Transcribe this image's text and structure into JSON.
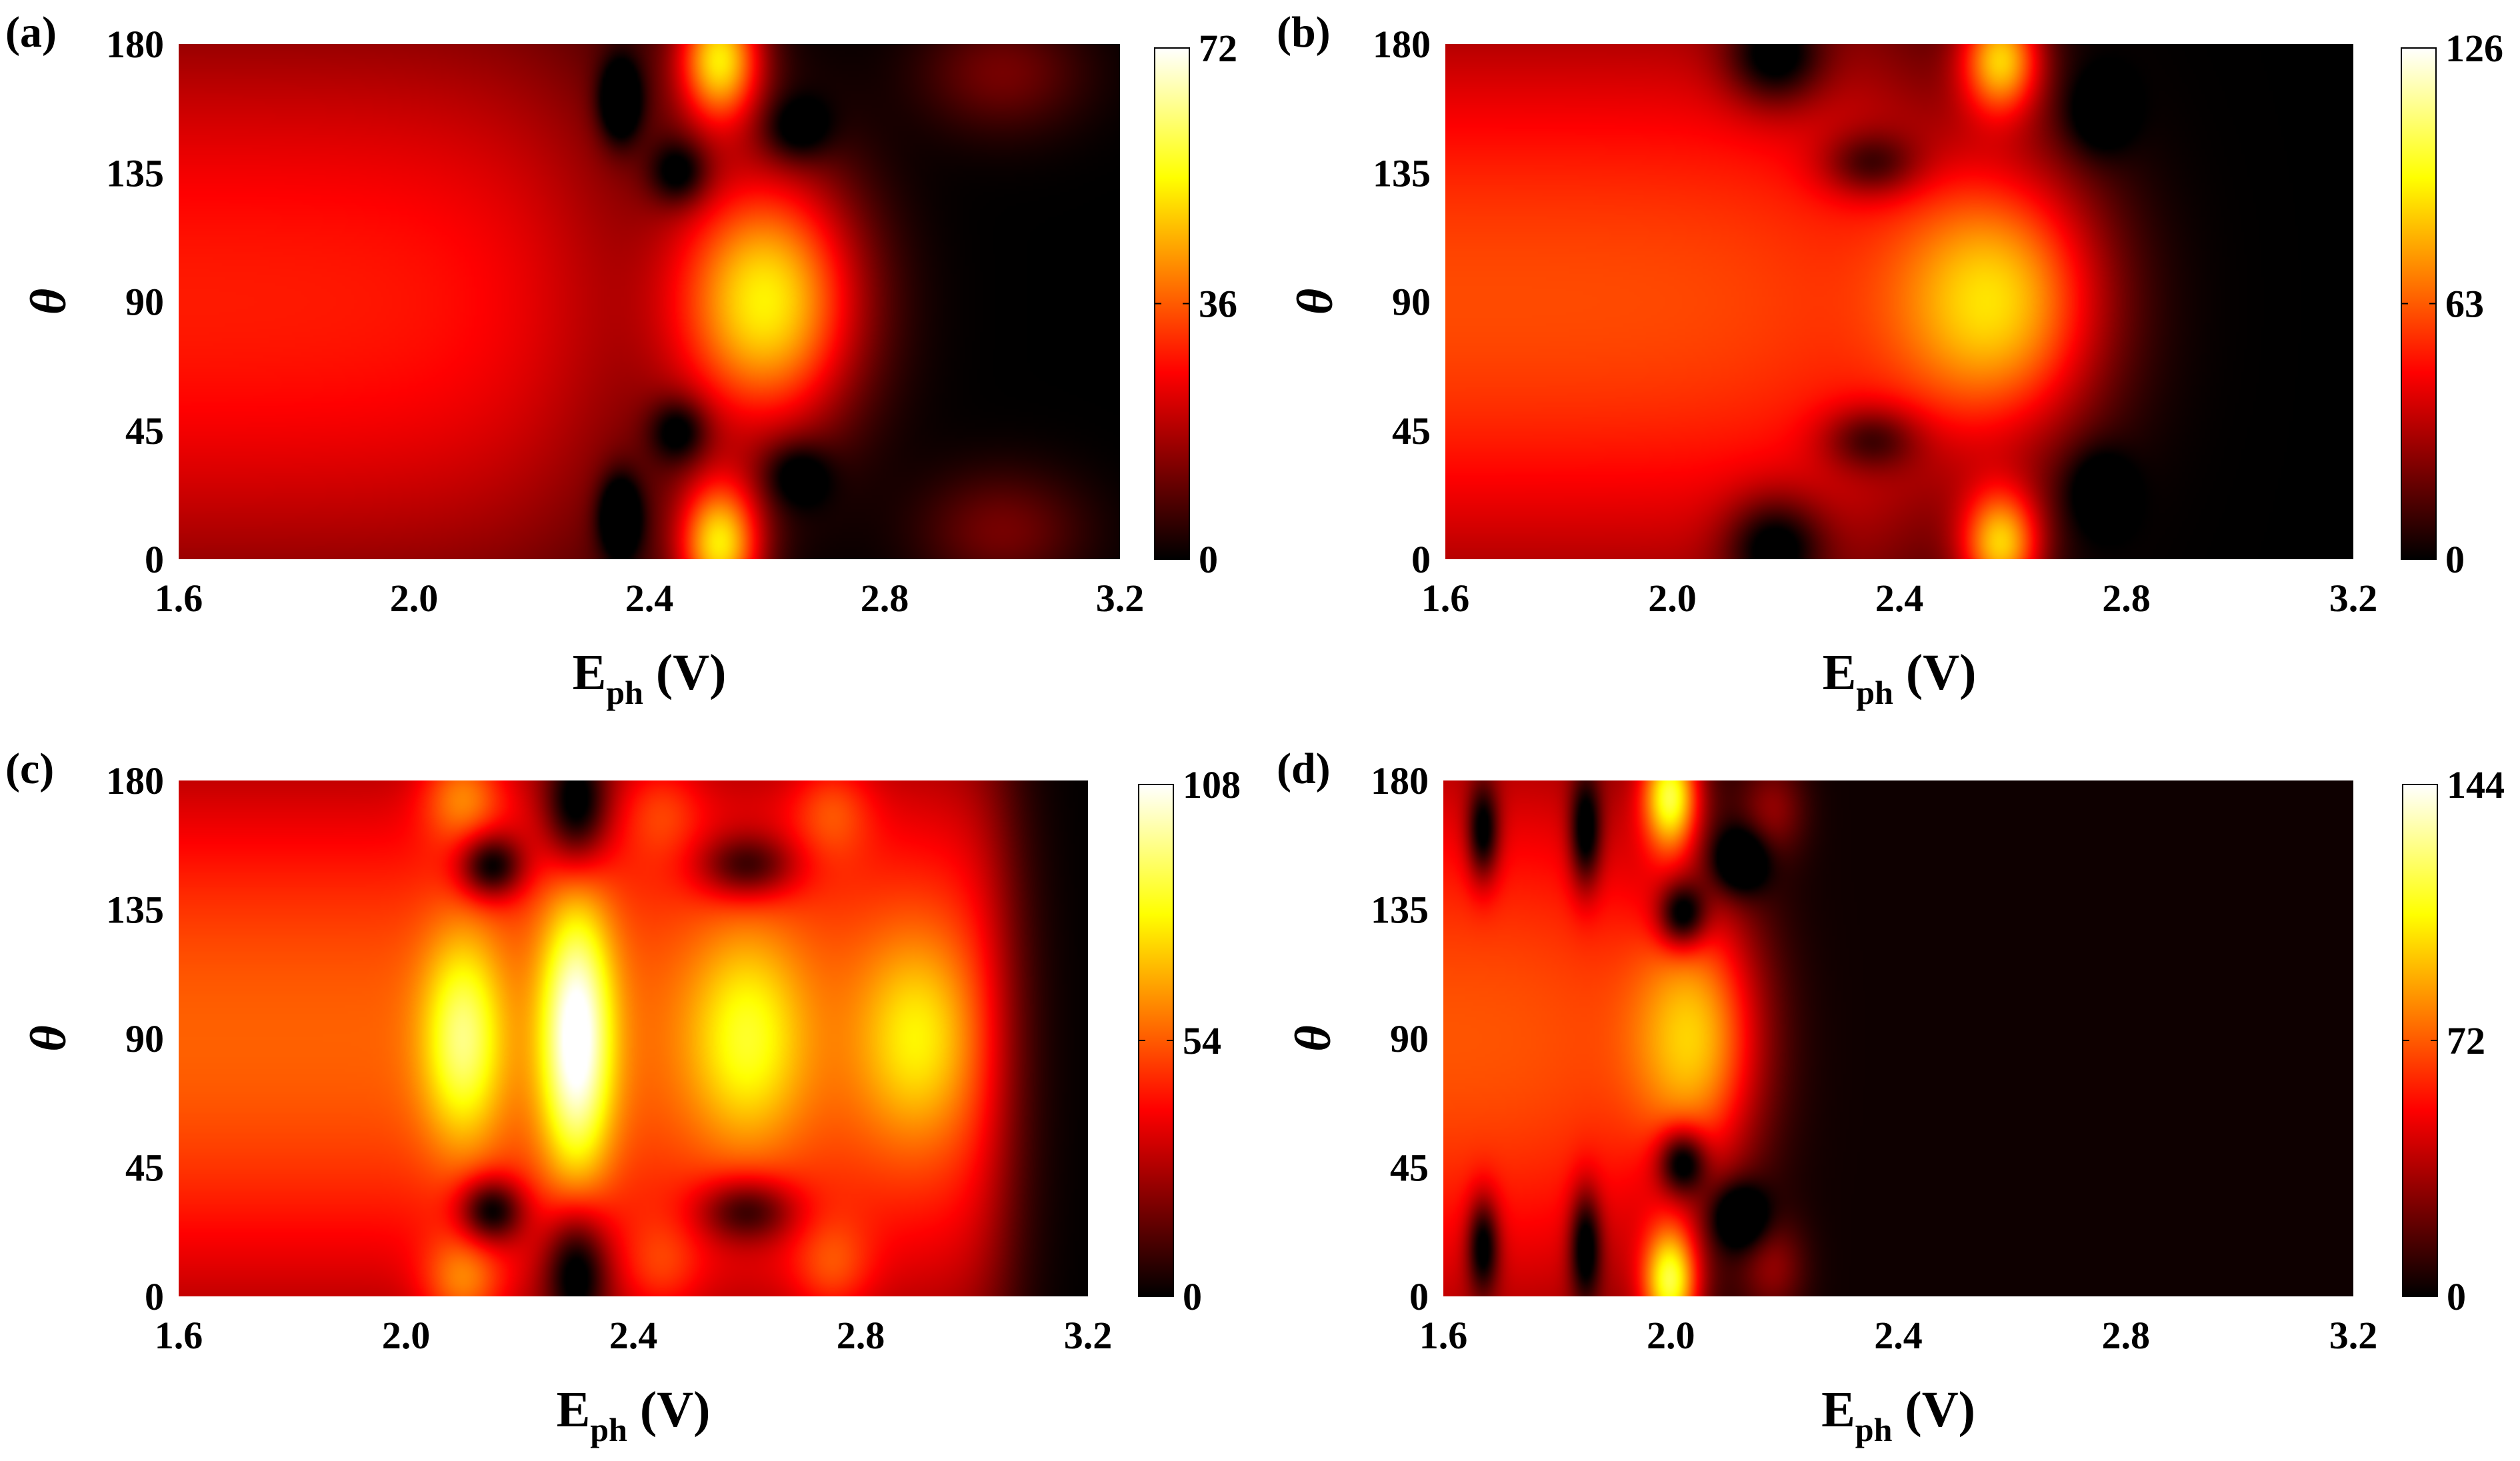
{
  "figure": {
    "colormap": "hot"
  },
  "chart_data": [
    {
      "panel": "(a)",
      "type": "heatmap",
      "xlabel_main": "E",
      "xlabel_sub": "ph",
      "xlabel_unit": " (V)",
      "ylabel": "θ",
      "xlim": [
        1.6,
        3.2
      ],
      "ylim": [
        0,
        180
      ],
      "xticks": [
        "1.6",
        "2.0",
        "2.4",
        "2.8",
        "3.2"
      ],
      "yticks": [
        "0",
        "45",
        "90",
        "135",
        "180"
      ],
      "colorbar": {
        "min": 0,
        "max": 72,
        "ticks": [
          "0",
          "36",
          "72"
        ]
      },
      "base": {
        "value": 29,
        "decay_start": 2.35,
        "decay_width": 0.3
      },
      "blobs": [
        {
          "x": 2.6,
          "y": 90,
          "sx": 0.11,
          "sy": 32,
          "amp": 50
        },
        {
          "x": 2.52,
          "y": 175,
          "sx": 0.05,
          "sy": 16,
          "amp": 48
        },
        {
          "x": 2.52,
          "y": 5,
          "sx": 0.05,
          "sy": 16,
          "amp": 48
        },
        {
          "x": 2.35,
          "y": 160,
          "sx": 0.025,
          "sy": 10,
          "amp": -26
        },
        {
          "x": 2.35,
          "y": 15,
          "sx": 0.025,
          "sy": 10,
          "amp": -26
        },
        {
          "x": 2.45,
          "y": 135,
          "sx": 0.035,
          "sy": 8,
          "amp": -18
        },
        {
          "x": 2.45,
          "y": 45,
          "sx": 0.035,
          "sy": 8,
          "amp": -18
        },
        {
          "x": 2.65,
          "y": 150,
          "sx": 0.04,
          "sy": 8,
          "amp": -14
        },
        {
          "x": 2.65,
          "y": 30,
          "sx": 0.04,
          "sy": 8,
          "amp": -14
        },
        {
          "x": 3.0,
          "y": 170,
          "sx": 0.1,
          "sy": 15,
          "amp": 12
        },
        {
          "x": 3.0,
          "y": 10,
          "sx": 0.1,
          "sy": 15,
          "amp": 12
        }
      ]
    },
    {
      "panel": "(b)",
      "type": "heatmap",
      "xlabel_main": "E",
      "xlabel_sub": "ph",
      "xlabel_unit": " (V)",
      "ylabel": "θ",
      "xlim": [
        1.6,
        3.2
      ],
      "ylim": [
        0,
        180
      ],
      "xticks": [
        "1.6",
        "2.0",
        "2.4",
        "2.8",
        "3.2"
      ],
      "yticks": [
        "0",
        "45",
        "90",
        "135",
        "180"
      ],
      "colorbar": {
        "min": 0,
        "max": 126,
        "ticks": [
          "0",
          "63",
          "126"
        ]
      },
      "base": {
        "value": 60,
        "decay_start": 2.45,
        "decay_width": 0.28
      },
      "blobs": [
        {
          "x": 2.58,
          "y": 90,
          "sx": 0.13,
          "sy": 34,
          "amp": 75
        },
        {
          "x": 2.58,
          "y": 175,
          "sx": 0.05,
          "sy": 14,
          "amp": 75
        },
        {
          "x": 2.58,
          "y": 5,
          "sx": 0.05,
          "sy": 14,
          "amp": 75
        },
        {
          "x": 2.18,
          "y": 175,
          "sx": 0.06,
          "sy": 12,
          "amp": -40
        },
        {
          "x": 2.18,
          "y": 5,
          "sx": 0.06,
          "sy": 12,
          "amp": -40
        },
        {
          "x": 2.35,
          "y": 138,
          "sx": 0.06,
          "sy": 8,
          "amp": -32
        },
        {
          "x": 2.35,
          "y": 42,
          "sx": 0.06,
          "sy": 8,
          "amp": -32
        },
        {
          "x": 2.75,
          "y": 155,
          "sx": 0.04,
          "sy": 10,
          "amp": -20
        },
        {
          "x": 2.75,
          "y": 25,
          "sx": 0.04,
          "sy": 10,
          "amp": -20
        }
      ]
    },
    {
      "panel": "(c)",
      "type": "heatmap",
      "xlabel_main": "E",
      "xlabel_sub": "ph",
      "xlabel_unit": " (V)",
      "ylabel": "θ",
      "xlim": [
        1.6,
        3.2
      ],
      "ylim": [
        0,
        180
      ],
      "xticks": [
        "1.6",
        "2.0",
        "2.4",
        "2.8",
        "3.2"
      ],
      "yticks": [
        "0",
        "45",
        "90",
        "135",
        "180"
      ],
      "colorbar": {
        "min": 0,
        "max": 108,
        "ticks": [
          "0",
          "54",
          "108"
        ]
      },
      "base": {
        "value": 55,
        "decay_start": 3.05,
        "decay_width": 0.1
      },
      "blobs": [
        {
          "x": 2.1,
          "y": 90,
          "sx": 0.05,
          "sy": 26,
          "amp": 40
        },
        {
          "x": 2.3,
          "y": 90,
          "sx": 0.045,
          "sy": 35,
          "amp": 60
        },
        {
          "x": 2.6,
          "y": 90,
          "sx": 0.07,
          "sy": 26,
          "amp": 30
        },
        {
          "x": 2.9,
          "y": 90,
          "sx": 0.07,
          "sy": 24,
          "amp": 25
        },
        {
          "x": 2.1,
          "y": 175,
          "sx": 0.05,
          "sy": 12,
          "amp": 28
        },
        {
          "x": 2.1,
          "y": 5,
          "sx": 0.05,
          "sy": 12,
          "amp": 28
        },
        {
          "x": 2.15,
          "y": 150,
          "sx": 0.04,
          "sy": 8,
          "amp": -45
        },
        {
          "x": 2.15,
          "y": 30,
          "sx": 0.04,
          "sy": 8,
          "amp": -45
        },
        {
          "x": 2.3,
          "y": 170,
          "sx": 0.04,
          "sy": 15,
          "amp": -42
        },
        {
          "x": 2.3,
          "y": 10,
          "sx": 0.04,
          "sy": 15,
          "amp": -42
        },
        {
          "x": 2.6,
          "y": 150,
          "sx": 0.06,
          "sy": 8,
          "amp": -35
        },
        {
          "x": 2.6,
          "y": 30,
          "sx": 0.06,
          "sy": 8,
          "amp": -35
        },
        {
          "x": 2.45,
          "y": 170,
          "sx": 0.05,
          "sy": 12,
          "amp": 15
        },
        {
          "x": 2.45,
          "y": 10,
          "sx": 0.05,
          "sy": 12,
          "amp": 15
        },
        {
          "x": 2.75,
          "y": 170,
          "sx": 0.05,
          "sy": 12,
          "amp": 18
        },
        {
          "x": 2.75,
          "y": 10,
          "sx": 0.05,
          "sy": 12,
          "amp": 18
        }
      ]
    },
    {
      "panel": "(d)",
      "type": "heatmap",
      "xlabel_main": "E",
      "xlabel_sub": "ph",
      "xlabel_unit": " (V)",
      "ylabel": "θ",
      "xlim": [
        1.6,
        3.2
      ],
      "ylim": [
        0,
        180
      ],
      "xticks": [
        "1.6",
        "2.0",
        "2.4",
        "2.8",
        "3.2"
      ],
      "yticks": [
        "0",
        "45",
        "90",
        "135",
        "180"
      ],
      "colorbar": {
        "min": 0,
        "max": 144,
        "ticks": [
          "0",
          "72",
          "144"
        ]
      },
      "base": {
        "value": 68,
        "decay_start": 1.98,
        "decay_width": 0.16
      },
      "floor": 8,
      "blobs": [
        {
          "x": 2.05,
          "y": 90,
          "sx": 0.08,
          "sy": 34,
          "amp": 78
        },
        {
          "x": 2.0,
          "y": 175,
          "sx": 0.035,
          "sy": 14,
          "amp": 95
        },
        {
          "x": 2.0,
          "y": 5,
          "sx": 0.035,
          "sy": 14,
          "amp": 95
        },
        {
          "x": 1.67,
          "y": 162,
          "sx": 0.02,
          "sy": 12,
          "amp": -55
        },
        {
          "x": 1.67,
          "y": 18,
          "sx": 0.02,
          "sy": 12,
          "amp": -55
        },
        {
          "x": 1.85,
          "y": 162,
          "sx": 0.02,
          "sy": 14,
          "amp": -55
        },
        {
          "x": 1.85,
          "y": 18,
          "sx": 0.02,
          "sy": 14,
          "amp": -55
        },
        {
          "x": 2.02,
          "y": 133,
          "sx": 0.03,
          "sy": 8,
          "amp": -60
        },
        {
          "x": 2.02,
          "y": 47,
          "sx": 0.03,
          "sy": 8,
          "amp": -60
        },
        {
          "x": 2.12,
          "y": 152,
          "sx": 0.035,
          "sy": 8,
          "amp": -45
        },
        {
          "x": 2.12,
          "y": 28,
          "sx": 0.035,
          "sy": 8,
          "amp": -45
        },
        {
          "x": 2.18,
          "y": 170,
          "sx": 0.04,
          "sy": 12,
          "amp": 25
        },
        {
          "x": 2.18,
          "y": 10,
          "sx": 0.04,
          "sy": 12,
          "amp": 25
        }
      ]
    }
  ]
}
